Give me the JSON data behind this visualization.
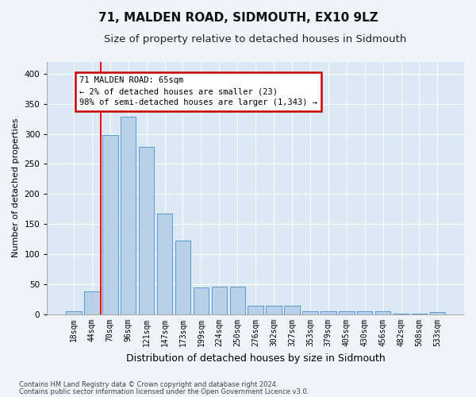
{
  "title": "71, MALDEN ROAD, SIDMOUTH, EX10 9LZ",
  "subtitle": "Size of property relative to detached houses in Sidmouth",
  "xlabel": "Distribution of detached houses by size in Sidmouth",
  "ylabel": "Number of detached properties",
  "footnote1": "Contains HM Land Registry data © Crown copyright and database right 2024.",
  "footnote2": "Contains public sector information licensed under the Open Government Licence v3.0.",
  "bin_labels": [
    "18sqm",
    "44sqm",
    "70sqm",
    "96sqm",
    "121sqm",
    "147sqm",
    "173sqm",
    "199sqm",
    "224sqm",
    "250sqm",
    "276sqm",
    "302sqm",
    "327sqm",
    "353sqm",
    "379sqm",
    "405sqm",
    "430sqm",
    "456sqm",
    "482sqm",
    "508sqm",
    "533sqm"
  ],
  "bar_values": [
    5,
    38,
    298,
    328,
    278,
    168,
    123,
    45,
    46,
    46,
    15,
    15,
    15,
    5,
    6,
    5,
    6,
    5,
    1,
    1,
    4
  ],
  "bar_color": "#b8d0e8",
  "bar_edge_color": "#5b9bd5",
  "bg_color": "#dce8f5",
  "grid_color": "#ffffff",
  "fig_bg_color": "#f0f4f8",
  "red_line_x": 1.5,
  "annotation_text": "71 MALDEN ROAD: 65sqm\n← 2% of detached houses are smaller (23)\n98% of semi-detached houses are larger (1,343) →",
  "annotation_box_color": "#cc0000",
  "ylim": [
    0,
    420
  ],
  "yticks": [
    0,
    50,
    100,
    150,
    200,
    250,
    300,
    350,
    400
  ],
  "title_fontsize": 11,
  "subtitle_fontsize": 9.5,
  "ylabel_fontsize": 8,
  "xlabel_fontsize": 9,
  "tick_fontsize": 7,
  "annot_fontsize": 7.5,
  "footnote_fontsize": 6
}
